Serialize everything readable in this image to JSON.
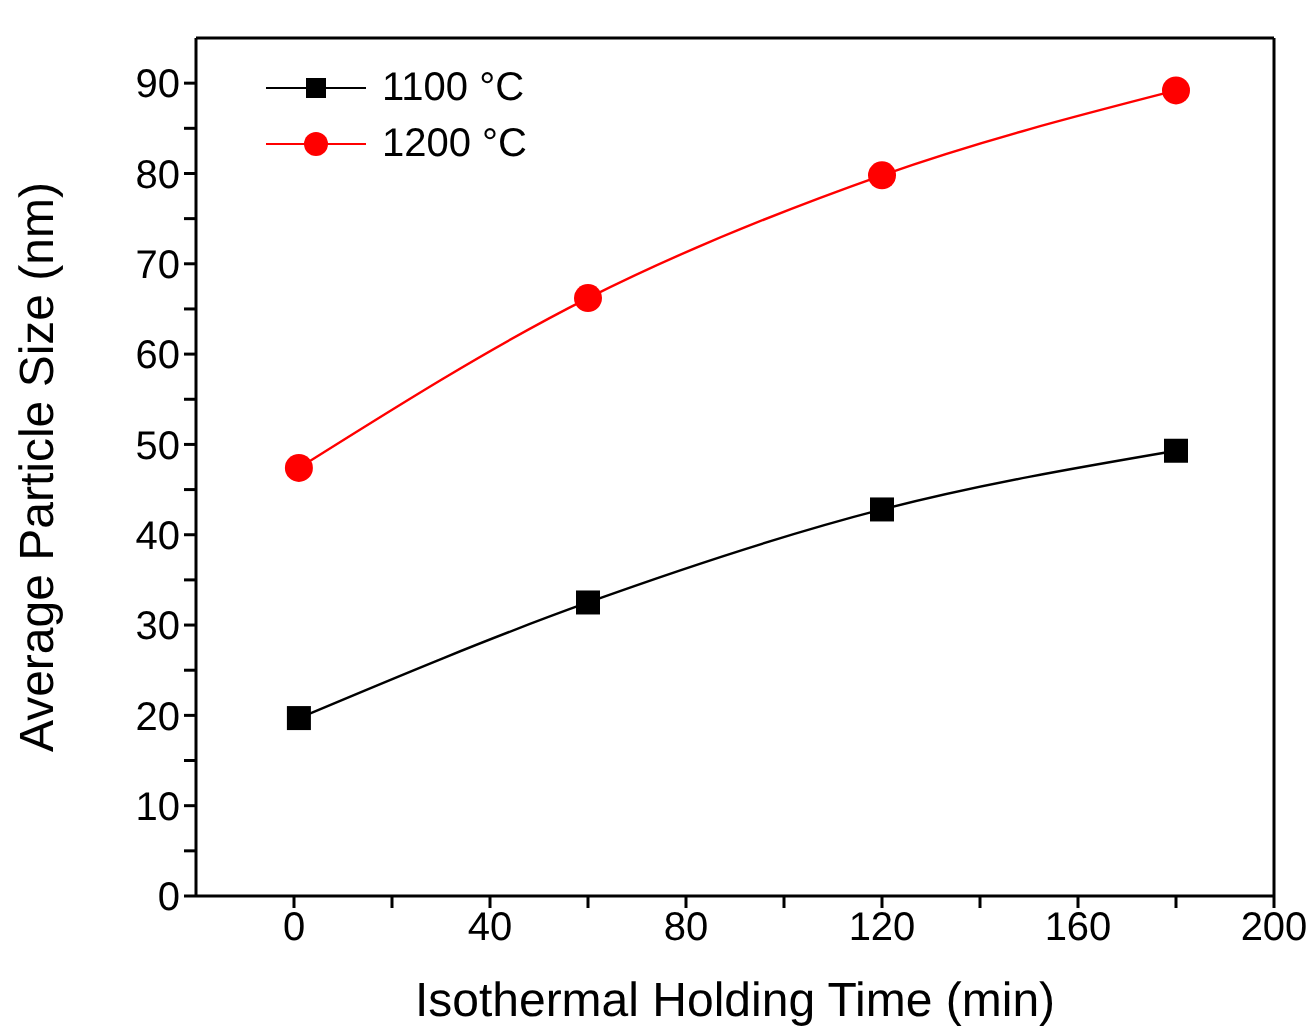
{
  "chart_data": {
    "type": "line",
    "xlabel": "Isothermal Holding Time (min)",
    "ylabel": "Average Particle Size (nm)",
    "x": [
      1,
      60,
      120,
      180
    ],
    "series": [
      {
        "name": "1100 °C",
        "color": "#000000",
        "marker": "square",
        "values": [
          19.7,
          32.5,
          42.8,
          49.3
        ]
      },
      {
        "name": "1200 °C",
        "color": "#ff0000",
        "marker": "circle",
        "values": [
          47.4,
          66.2,
          79.8,
          89.2
        ]
      }
    ],
    "xlim": [
      -20,
      200
    ],
    "xticks": [
      0,
      {
        "value": 20,
        "label": null
      },
      40,
      {
        "value": 60,
        "label": null
      },
      80,
      {
        "value": 100,
        "label": null
      },
      120,
      {
        "value": 140,
        "label": null
      },
      160,
      {
        "value": 180,
        "label": null
      },
      200
    ],
    "ylim": [
      0,
      95
    ],
    "yticks": [
      0,
      {
        "value": 5,
        "label": null
      },
      10,
      {
        "value": 15,
        "label": null
      },
      20,
      {
        "value": 25,
        "label": null
      },
      30,
      {
        "value": 35,
        "label": null
      },
      40,
      {
        "value": 45,
        "label": null
      },
      50,
      {
        "value": 55,
        "label": null
      },
      60,
      {
        "value": 65,
        "label": null
      },
      70,
      {
        "value": 75,
        "label": null
      },
      80,
      {
        "value": 85,
        "label": null
      },
      90
    ],
    "grid": false,
    "legend": "top left"
  }
}
